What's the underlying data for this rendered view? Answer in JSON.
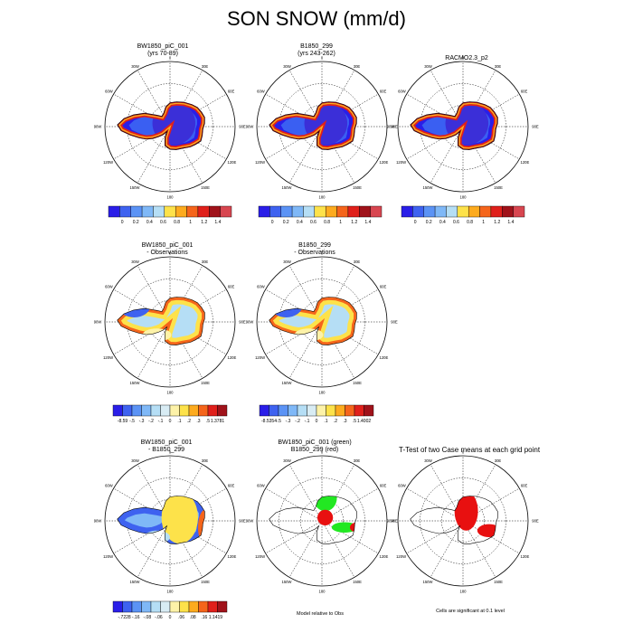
{
  "figure": {
    "title": "SON SNOW (mm/d)"
  },
  "panels": [
    {
      "id": "p1",
      "title": [
        "BW1850_piC_001",
        "(yrs 70-89)"
      ],
      "type": "field"
    },
    {
      "id": "p2",
      "title": [
        "B1850_299",
        "(yrs 243-262)"
      ],
      "type": "field"
    },
    {
      "id": "p3",
      "title": [
        "RACMO2.3_p2"
      ],
      "type": "field"
    },
    {
      "id": "p4",
      "title": [
        "BW1850_piC_001",
        "- Observations"
      ],
      "type": "diff"
    },
    {
      "id": "p5",
      "title": [
        "B1850_299",
        "- Observations"
      ],
      "type": "diff"
    },
    {
      "id": "p6",
      "title": [
        "BW1850_piC_001",
        "- B1850_299"
      ],
      "type": "diff2"
    },
    {
      "id": "p7",
      "title": [
        "BW1850_piC_001 (green)",
        "B1850_299 (red)"
      ],
      "type": "sig"
    },
    {
      "id": "p8",
      "title": [
        "T-Test of two Case means at each grid point"
      ],
      "type": "ttest"
    }
  ],
  "map_labels": {
    "top": "0",
    "bottom": "180",
    "left": "90W",
    "right": "90E",
    "ul1": "30W",
    "ul2": "60W",
    "ur1": "30E",
    "ur2": "60E",
    "ll1": "120W",
    "ll2": "150W",
    "lr1": "120E",
    "lr2": "150E"
  },
  "colorbars": {
    "field": {
      "colors": [
        "#2a1ee8",
        "#3e62f0",
        "#5b93f5",
        "#7fb8f7",
        "#b5def5",
        "#fde24a",
        "#fdab1e",
        "#f5651b",
        "#e0201b",
        "#a0121a",
        "#d84650"
      ],
      "labels": [
        "0",
        "0.2",
        "0.4",
        "0.6",
        "0.8",
        "1",
        "1.2",
        "1.4"
      ]
    },
    "diff1": {
      "colors": [
        "#2a1ee8",
        "#3e62f0",
        "#5b93f5",
        "#7fb8f7",
        "#b5def5",
        "#d8ecf4",
        "#fdf2a8",
        "#fde24a",
        "#fdab1e",
        "#f5651b",
        "#e0201b",
        "#a0121a"
      ],
      "labels": [
        "-8.59",
        "-.5",
        "-.3",
        "-.2",
        "-.1",
        "0",
        ".1",
        ".2",
        ".3",
        ".5",
        "1.3781"
      ]
    },
    "diff2": {
      "colors": [
        "#2a1ee8",
        "#3e62f0",
        "#5b93f5",
        "#7fb8f7",
        "#b5def5",
        "#d8ecf4",
        "#fdf2a8",
        "#fde24a",
        "#fdab1e",
        "#f5651b",
        "#e0201b",
        "#a0121a"
      ],
      "labels": [
        "-8.5354",
        "-.5",
        "-.3",
        "-.2",
        "-.1",
        "0",
        ".1",
        ".2",
        ".3",
        ".5",
        "1.4002"
      ]
    },
    "diff3": {
      "colors": [
        "#2a1ee8",
        "#3e62f0",
        "#5b93f5",
        "#7fb8f7",
        "#b5def5",
        "#d8ecf4",
        "#fdf2a8",
        "#fde24a",
        "#fdab1e",
        "#f5651b",
        "#e0201b",
        "#a0121a"
      ],
      "labels": [
        "-.7228",
        "-.16",
        "-.08",
        "-.06",
        "0",
        ".06",
        ".08",
        ".16",
        "1.1419"
      ]
    }
  },
  "notes": {
    "p7": "Model relative to Obs",
    "p8": "Cells are significant at 0.1 level"
  },
  "colors": {
    "sig_green": "#22e822",
    "sig_red": "#e81010"
  }
}
